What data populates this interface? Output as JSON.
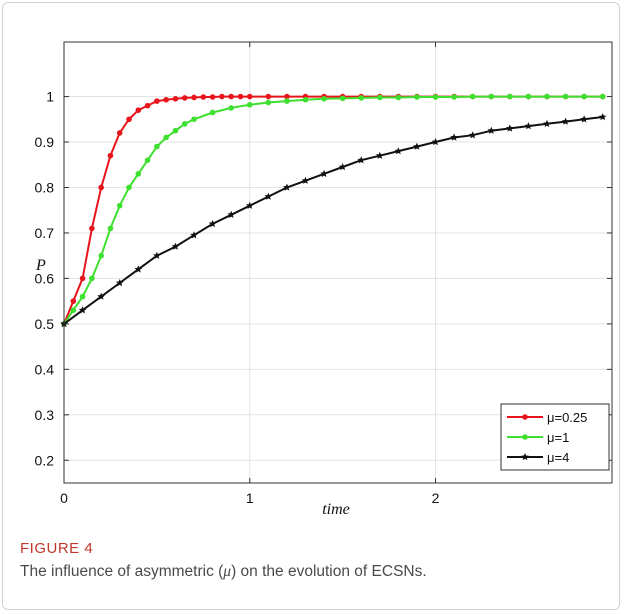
{
  "caption": {
    "label": "FIGURE 4",
    "text_before": "The influence of asymmetric (",
    "symbol": "μ",
    "text_after": ") on the evolution of ECSNs."
  },
  "chart_data": {
    "type": "line",
    "xlabel": "time",
    "ylabel": "P",
    "xlim": [
      0,
      2.95
    ],
    "ylim": [
      0.15,
      1.12
    ],
    "xticks": [
      0,
      1,
      2
    ],
    "yticks": [
      0.2,
      0.3,
      0.4,
      0.5,
      0.6,
      0.7,
      0.8,
      0.9,
      1
    ],
    "grid": true,
    "legend_position": "bottom-right",
    "series": [
      {
        "name": "μ=0.25",
        "color": "#e8141b",
        "marker": "dot",
        "x": [
          0,
          0.05,
          0.1,
          0.15,
          0.2,
          0.25,
          0.3,
          0.35,
          0.4,
          0.45,
          0.5,
          0.55,
          0.6,
          0.65,
          0.7,
          0.75,
          0.8,
          0.85,
          0.9,
          0.95,
          1.0,
          1.1,
          1.2,
          1.3,
          1.4,
          1.5,
          1.6,
          1.7,
          1.8,
          1.9,
          2.0,
          2.1,
          2.2,
          2.3,
          2.4,
          2.5,
          2.6,
          2.7,
          2.8,
          2.9
        ],
        "values": [
          0.5,
          0.55,
          0.6,
          0.71,
          0.8,
          0.87,
          0.92,
          0.95,
          0.97,
          0.98,
          0.99,
          0.993,
          0.995,
          0.997,
          0.998,
          0.999,
          0.999,
          1,
          1,
          1,
          1,
          1,
          1,
          1,
          1,
          1,
          1,
          1,
          1,
          1,
          1,
          1,
          1,
          1,
          1,
          1,
          1,
          1,
          1,
          1
        ]
      },
      {
        "name": "μ=1",
        "color": "#3ee02f",
        "marker": "dot",
        "x": [
          0,
          0.05,
          0.1,
          0.15,
          0.2,
          0.25,
          0.3,
          0.35,
          0.4,
          0.45,
          0.5,
          0.55,
          0.6,
          0.65,
          0.7,
          0.8,
          0.9,
          1.0,
          1.1,
          1.2,
          1.3,
          1.4,
          1.5,
          1.6,
          1.7,
          1.8,
          1.9,
          2.0,
          2.1,
          2.2,
          2.3,
          2.4,
          2.5,
          2.6,
          2.7,
          2.8,
          2.9
        ],
        "values": [
          0.5,
          0.53,
          0.56,
          0.6,
          0.65,
          0.71,
          0.76,
          0.8,
          0.83,
          0.86,
          0.89,
          0.91,
          0.925,
          0.94,
          0.95,
          0.965,
          0.975,
          0.982,
          0.987,
          0.99,
          0.993,
          0.995,
          0.996,
          0.997,
          0.998,
          0.998,
          0.999,
          0.999,
          0.999,
          1,
          1,
          1,
          1,
          1,
          1,
          1,
          1
        ]
      },
      {
        "name": "μ=4",
        "color": "#111111",
        "marker": "star",
        "x": [
          0,
          0.1,
          0.2,
          0.3,
          0.4,
          0.5,
          0.6,
          0.7,
          0.8,
          0.9,
          1.0,
          1.1,
          1.2,
          1.3,
          1.4,
          1.5,
          1.6,
          1.7,
          1.8,
          1.9,
          2.0,
          2.1,
          2.2,
          2.3,
          2.4,
          2.5,
          2.6,
          2.7,
          2.8,
          2.9
        ],
        "values": [
          0.5,
          0.53,
          0.56,
          0.59,
          0.62,
          0.65,
          0.67,
          0.695,
          0.72,
          0.74,
          0.76,
          0.78,
          0.8,
          0.815,
          0.83,
          0.845,
          0.86,
          0.87,
          0.88,
          0.89,
          0.9,
          0.91,
          0.915,
          0.925,
          0.93,
          0.935,
          0.94,
          0.945,
          0.95,
          0.955
        ]
      }
    ]
  }
}
